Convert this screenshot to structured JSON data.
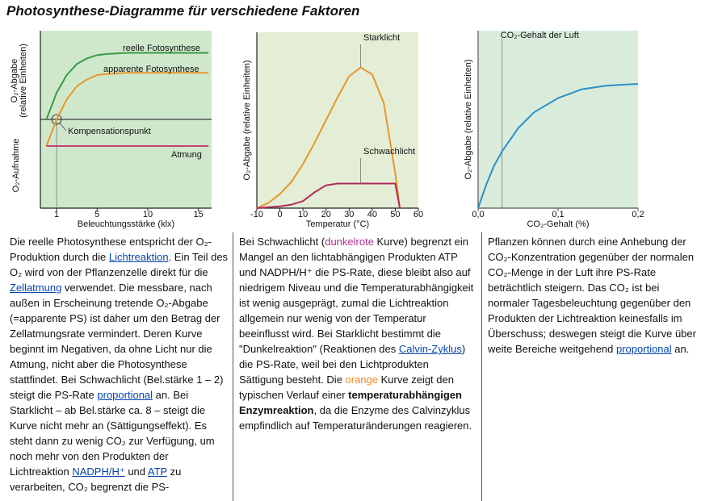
{
  "title": "Photosynthese-Diagramme für verschiedene Faktoren",
  "chart_data": [
    {
      "type": "line",
      "y_label": "O₂-Abgabe",
      "y_label_note": "(relative Einheiten)",
      "y_label_low": "O₂-Aufnahme",
      "x_label": "Beleuchtungsstärke (klx)",
      "x": [
        0,
        1,
        2,
        3,
        4,
        5,
        6,
        8,
        10,
        12,
        15,
        16
      ],
      "series": [
        {
          "name": "reelle Fotosynthese",
          "color": "#3a9a45",
          "values": [
            0,
            1.2,
            2.0,
            2.5,
            2.75,
            2.9,
            2.95,
            3.0,
            3.0,
            3.0,
            3.0,
            3.0
          ]
        },
        {
          "name": "apparente Fotosynthese",
          "color": "#e8962a",
          "values": [
            -1.2,
            0,
            0.9,
            1.5,
            1.8,
            2.0,
            2.05,
            2.1,
            2.1,
            2.1,
            2.1,
            2.1
          ]
        },
        {
          "name": "Atmung",
          "color": "#c8407a",
          "values": [
            -1.2,
            -1.2,
            -1.2,
            -1.2,
            -1.2,
            -1.2,
            -1.2,
            -1.2,
            -1.2,
            -1.2,
            -1.2,
            -1.2
          ]
        }
      ],
      "annotation": {
        "text": "Kompensationspunkt",
        "x": 1,
        "y": 0
      },
      "xlim": [
        -0.6,
        16.3
      ],
      "ylim": [
        -4,
        4
      ],
      "xticks": [
        1,
        5,
        10,
        15
      ]
    },
    {
      "type": "line",
      "y_label": "O₂-Abgabe (relative Einheiten)",
      "x_label": "Temperatur (°C)",
      "x": [
        -10,
        -5,
        0,
        5,
        10,
        15,
        20,
        25,
        30,
        35,
        40,
        45,
        50,
        52
      ],
      "series": [
        {
          "name": "Starklicht",
          "color": "#e8962a",
          "values": [
            0,
            0.3,
            0.8,
            1.5,
            2.5,
            3.7,
            5.0,
            6.3,
            7.5,
            8.0,
            7.6,
            6.0,
            2.0,
            0
          ]
        },
        {
          "name": "Schwachlicht",
          "color": "#b02a5a",
          "values": [
            0,
            0.05,
            0.1,
            0.2,
            0.4,
            0.9,
            1.3,
            1.4,
            1.4,
            1.4,
            1.4,
            1.4,
            1.4,
            0
          ]
        }
      ],
      "xlim": [
        -10,
        60
      ],
      "ylim": [
        0,
        10
      ],
      "xticks": [
        -10,
        0,
        10,
        20,
        30,
        40,
        50,
        60
      ]
    },
    {
      "type": "line",
      "y_label": "O₂-Abgabe (relative Einheiten)",
      "x_label": "CO₂-Gehalt (%)",
      "x": [
        0,
        0.01,
        0.02,
        0.03,
        0.05,
        0.07,
        0.1,
        0.13,
        0.16,
        0.2
      ],
      "series": [
        {
          "color": "#2a90c8",
          "values": [
            0,
            1.3,
            2.4,
            3.2,
            4.5,
            5.4,
            6.2,
            6.7,
            6.9,
            7.0
          ]
        }
      ],
      "annotation": {
        "text": "CO₂-Gehalt der Luft",
        "x": 0.03
      },
      "xlim": [
        0,
        0.2
      ],
      "ylim": [
        0,
        10
      ],
      "xticks": [
        {
          "value": 0,
          "label": "0,0"
        },
        {
          "value": 0.1,
          "label": "0,1"
        },
        {
          "value": 0.2,
          "label": "0,2"
        }
      ]
    }
  ],
  "columns": [
    {
      "runs": [
        {
          "t": "Die reelle Photosynthese entspricht der O₂-Produktion durch die "
        },
        {
          "t": "Lichtreaktion",
          "k": "link"
        },
        {
          "t": ". Ein Teil des O₂ wird von der Pflanzenzelle direkt für die "
        },
        {
          "t": "Zellatmung",
          "k": "link"
        },
        {
          "t": " verwendet. Die messbare, nach außen in Erscheinung tretende O₂-Abgabe (=apparente PS) ist daher um den Betrag der Zellatmungsrate vermindert. Deren Kurve beginnt im Negativen, da ohne Licht nur die Atmung, nicht aber die Photosynthese stattfindet. Bei Schwachlicht (Bel.stärke 1 – 2) steigt die PS-Rate "
        },
        {
          "t": "proportional",
          "k": "link"
        },
        {
          "t": " an. Bei Starklicht – ab Bel.stärke ca. 8 – steigt die Kurve nicht mehr an (Sättigungseffekt). Es steht dann zu wenig CO₂ zur Verfügung, um noch mehr von den Produkten der Lichtreaktion "
        },
        {
          "t": "NADPH/H⁺",
          "k": "link"
        },
        {
          "t": " und "
        },
        {
          "t": "ATP",
          "k": "link"
        },
        {
          "t": " zu verarbeiten, CO₂ begrenzt die PS-"
        }
      ]
    },
    {
      "runs": [
        {
          "t": "Bei Schwachlicht ("
        },
        {
          "t": "dunkelrote",
          "k": "darkred"
        },
        {
          "t": " Kurve) begrenzt ein Mangel an den lichtabhängigen Produkten ATP und NADPH/H⁺ die PS-Rate, diese bleibt also auf niedrigem Niveau und die Temperaturabhängigkeit ist wenig ausgeprägt, zumal die Lichtreaktion allgemein nur wenig von der Temperatur beeinflusst wird. Bei Starklicht bestimmt die \"Dunkelreaktion\" (Reaktionen des "
        },
        {
          "t": "Calvin-Zyklus",
          "k": "link"
        },
        {
          "t": ") die PS-Rate, weil bei den Lichtprodukten Sättigung besteht. Die "
        },
        {
          "t": "orange",
          "k": "orange"
        },
        {
          "t": " Kurve zeigt den typischen Verlauf einer "
        },
        {
          "t": "temperaturabhängigen Enzymreaktion",
          "k": "bold"
        },
        {
          "t": ", da die Enzyme des Calvinzyklus empfindlich auf Temperaturänderungen reagieren."
        }
      ]
    },
    {
      "runs": [
        {
          "t": "Pflanzen können durch eine Anhebung der CO₂-Konzentration gegenüber der normalen CO₂-Menge in der Luft ihre PS-Rate beträchtlich steigern. Das CO₂ ist bei normaler Tagesbeleuchtung gegenüber den Produkten der Lichtreaktion keinesfalls im Überschuss; deswegen steigt die Kurve über weite Bereiche weitgehend "
        },
        {
          "t": "proportional",
          "k": "link"
        },
        {
          "t": " an."
        }
      ]
    }
  ]
}
